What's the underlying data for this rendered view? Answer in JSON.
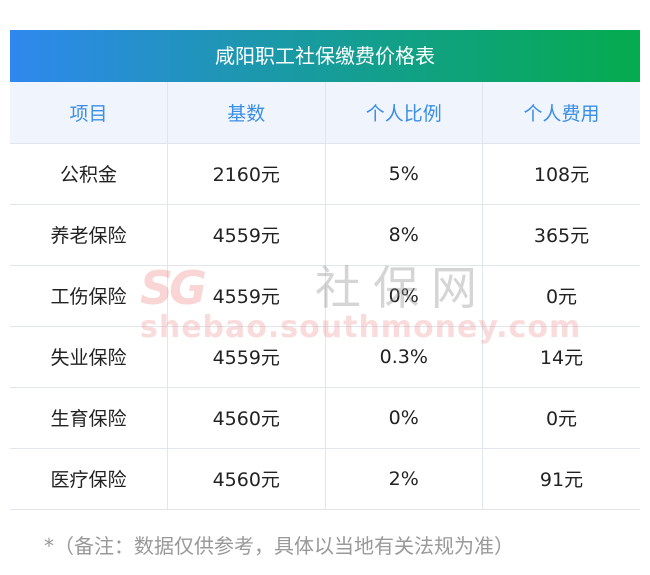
{
  "table": {
    "title": "咸阳职工社保缴费价格表",
    "headers": [
      "项目",
      "基数",
      "个人比例",
      "个人费用"
    ],
    "rows": [
      [
        "公积金",
        "2160元",
        "5%",
        "108元"
      ],
      [
        "养老保险",
        "4559元",
        "8%",
        "365元"
      ],
      [
        "工伤保险",
        "4559元",
        "0%",
        "0元"
      ],
      [
        "失业保险",
        "4559元",
        "0.3%",
        "14元"
      ],
      [
        "生育保险",
        "4560元",
        "0%",
        "0元"
      ],
      [
        "医疗保险",
        "4560元",
        "2%",
        "91元"
      ]
    ]
  },
  "note": "*（备注：数据仅供参考，具体以当地有关法规为准）",
  "watermark": {
    "logo": "SG",
    "name": "社保网",
    "url": "shebao.southmoney.com"
  },
  "colors": {
    "gradient_start": "#2f88ee",
    "gradient_end": "#05ab4e",
    "header_text": "#3a8ee6",
    "header_bg": "#f0f5fd"
  }
}
